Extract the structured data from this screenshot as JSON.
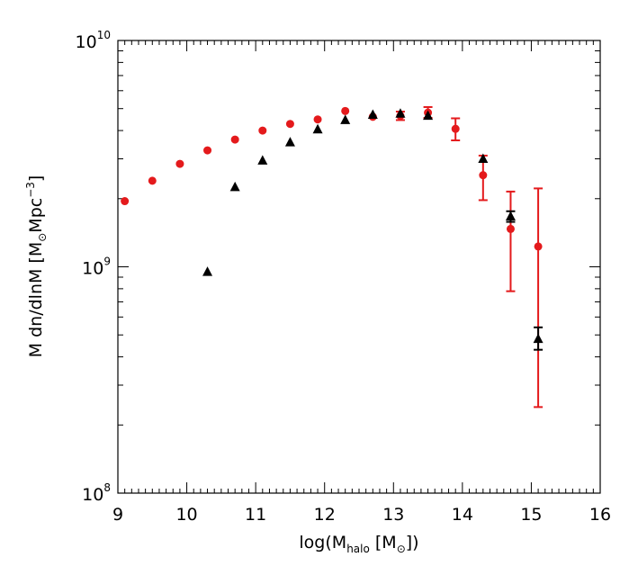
{
  "chart_data": {
    "type": "scatter",
    "title": "",
    "xlabel": {
      "prefix": "log(M",
      "sub": "halo",
      "middle": " [M",
      "sub2": "⊙",
      "suffix": "])"
    },
    "ylabel": {
      "prefix": "M dn/dlnM [M",
      "sub": "⊙",
      "middle": "Mpc",
      "sup": "−3",
      "suffix": "]"
    },
    "xlim": [
      9,
      16
    ],
    "ylim": [
      100000000,
      10000000000
    ],
    "yscale": "log",
    "x_ticks": [
      "9",
      "10",
      "11",
      "12",
      "13",
      "14",
      "15",
      "16"
    ],
    "y_ticks": [
      {
        "value": 100000000,
        "base": "10",
        "exp": "8"
      },
      {
        "value": 1000000000,
        "base": "10",
        "exp": "9"
      },
      {
        "value": 10000000000,
        "base": "10",
        "exp": "10"
      }
    ],
    "grid": false,
    "series": [
      {
        "marker": "circle",
        "color": "#e41a1c",
        "x": [
          9.1,
          9.5,
          9.9,
          10.3,
          10.7,
          11.1,
          11.5,
          11.9,
          12.3,
          12.7,
          13.1,
          13.5,
          13.9,
          14.3,
          14.7,
          15.1
        ],
        "y": [
          1950000000,
          2400000000,
          2850000000,
          3270000000,
          3650000000,
          4000000000,
          4280000000,
          4480000000,
          4880000000,
          4600000000,
          4650000000,
          4800000000,
          4070000000,
          2540000000,
          1470000000,
          1230000000
        ],
        "y_err_low": [
          null,
          null,
          null,
          null,
          null,
          null,
          null,
          null,
          null,
          null,
          4450000000,
          4550000000,
          3620000000,
          1970000000,
          780000000,
          240000000
        ],
        "y_err_high": [
          null,
          null,
          null,
          null,
          null,
          null,
          null,
          null,
          null,
          null,
          4850000000,
          5080000000,
          4530000000,
          3100000000,
          2150000000,
          2220000000
        ]
      },
      {
        "marker": "triangle",
        "color": "#000000",
        "x": [
          10.3,
          10.7,
          11.1,
          11.5,
          11.9,
          12.3,
          12.7,
          13.1,
          13.5,
          14.3,
          14.7,
          15.1
        ],
        "y": [
          950000000,
          2250000000,
          2950000000,
          3550000000,
          4050000000,
          4450000000,
          4700000000,
          4750000000,
          4650000000,
          3000000000,
          1670000000,
          480000000
        ],
        "y_err_low": [
          null,
          null,
          null,
          null,
          null,
          null,
          null,
          null,
          null,
          null,
          1580000000,
          430000000
        ],
        "y_err_high": [
          null,
          null,
          null,
          null,
          null,
          null,
          null,
          null,
          null,
          null,
          1760000000,
          540000000
        ]
      }
    ]
  }
}
